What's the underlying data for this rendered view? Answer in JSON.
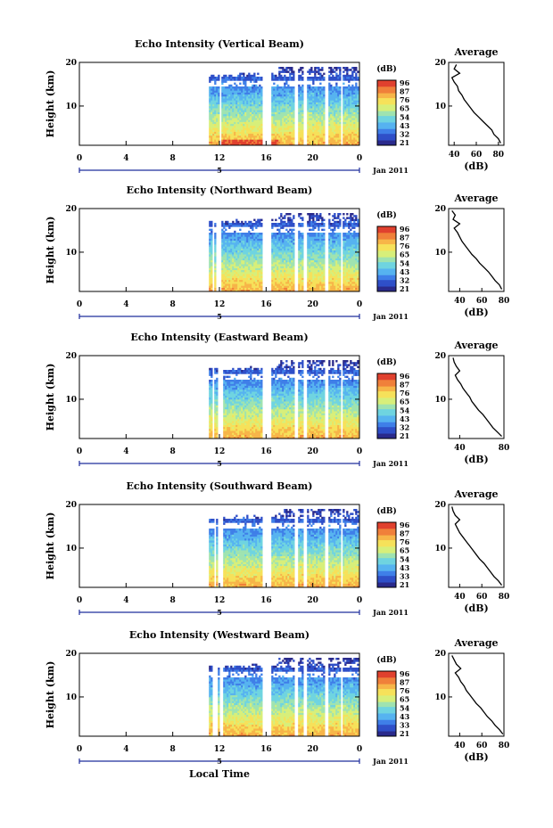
{
  "x_axis_label": "Local Time",
  "date_label": "Jan 2011",
  "day_marker": "5",
  "colorbar_unit": "(dB)",
  "average_title": "Average",
  "average_xlabel": "(dB)",
  "height_label": "Height (km)",
  "colors": {
    "colormap": [
      "#2a2a8c",
      "#2f4fc8",
      "#3f7fe8",
      "#56b3f0",
      "#6fd4e0",
      "#9fe3b0",
      "#d7ef7a",
      "#f6e15a",
      "#f7b548",
      "#f0803a",
      "#e0412e"
    ],
    "line": "#000000",
    "axis_blue": "#1f2d9c"
  },
  "chart_data": [
    {
      "type": "heatmap",
      "title": "Echo Intensity (Vertical Beam)",
      "xlabel": "",
      "ylabel": "Height (km)",
      "xlim": [
        0,
        24
      ],
      "ylim": [
        1,
        20
      ],
      "x_ticks": [
        "0",
        "4",
        "8",
        "12",
        "16",
        "20",
        "0"
      ],
      "y_ticks": [
        "20",
        "10"
      ],
      "colorbar_ticks": [
        "96",
        "87",
        "76",
        "65",
        "54",
        "43",
        "32",
        "21"
      ],
      "average": {
        "title": "Average",
        "xlabel": "(dB)",
        "xlim": [
          35,
          85
        ],
        "x_ticks": [
          "40",
          "60",
          "80"
        ],
        "y_ticks": [
          "20",
          "10"
        ],
        "height_km": [
          1.5,
          2.5,
          3.5,
          4.5,
          5.5,
          6.5,
          7.5,
          8.5,
          9.5,
          10.5,
          11.5,
          12.5,
          13.5,
          14.5,
          15.5,
          16.5,
          17.5,
          18.5,
          19.5
        ],
        "values_db": [
          82,
          80,
          76,
          74,
          70,
          66,
          62,
          58,
          55,
          52,
          49,
          47,
          44,
          43,
          40,
          38,
          45,
          40,
          42
        ]
      }
    },
    {
      "type": "heatmap",
      "title": "Echo Intensity (Northward Beam)",
      "xlabel": "",
      "ylabel": "Height (km)",
      "xlim": [
        0,
        24
      ],
      "ylim": [
        1,
        20
      ],
      "x_ticks": [
        "0",
        "4",
        "8",
        "12",
        "16",
        "20",
        "0"
      ],
      "y_ticks": [
        "20",
        "10"
      ],
      "colorbar_ticks": [
        "96",
        "87",
        "76",
        "65",
        "54",
        "43",
        "32",
        "21"
      ],
      "average": {
        "title": "Average",
        "xlabel": "(dB)",
        "xlim": [
          30,
          80
        ],
        "x_ticks": [
          "40",
          "60",
          "80"
        ],
        "y_ticks": [
          "20",
          "10"
        ],
        "height_km": [
          1.5,
          2.5,
          3.5,
          4.5,
          5.5,
          6.5,
          7.5,
          8.5,
          9.5,
          10.5,
          11.5,
          12.5,
          13.5,
          14.5,
          15.5,
          16.5,
          17.5,
          18.5,
          19.5
        ],
        "values_db": [
          78,
          76,
          72,
          69,
          66,
          62,
          58,
          55,
          51,
          48,
          45,
          42,
          40,
          38,
          35,
          40,
          34,
          36,
          33
        ]
      }
    },
    {
      "type": "heatmap",
      "title": "Echo Intensity (Eastward Beam)",
      "xlabel": "",
      "ylabel": "Height (km)",
      "xlim": [
        0,
        24
      ],
      "ylim": [
        1,
        20
      ],
      "x_ticks": [
        "0",
        "4",
        "8",
        "12",
        "16",
        "20",
        "0"
      ],
      "y_ticks": [
        "20",
        "10"
      ],
      "colorbar_ticks": [
        "96",
        "87",
        "76",
        "65",
        "54",
        "43",
        "32",
        "21"
      ],
      "average": {
        "title": "Average",
        "xlabel": "(dB)",
        "xlim": [
          30,
          80
        ],
        "x_ticks": [
          "40",
          "80"
        ],
        "y_ticks": [
          "20",
          "10"
        ],
        "height_km": [
          1.5,
          2.5,
          3.5,
          4.5,
          5.5,
          6.5,
          7.5,
          8.5,
          9.5,
          10.5,
          11.5,
          12.5,
          13.5,
          14.5,
          15.5,
          16.5,
          17.5,
          18.5,
          19.5
        ],
        "values_db": [
          78,
          74,
          70,
          67,
          64,
          61,
          57,
          54,
          51,
          49,
          46,
          43,
          41,
          38,
          36,
          40,
          37,
          35,
          34
        ]
      }
    },
    {
      "type": "heatmap",
      "title": "Echo Intensity (Southward Beam)",
      "xlabel": "",
      "ylabel": "Height (km)",
      "xlim": [
        0,
        24
      ],
      "ylim": [
        1,
        20
      ],
      "x_ticks": [
        "0",
        "4",
        "8",
        "12",
        "16",
        "20",
        "0"
      ],
      "y_ticks": [
        "20",
        "10"
      ],
      "colorbar_ticks": [
        "96",
        "87",
        "76",
        "65",
        "54",
        "43",
        "33",
        "21"
      ],
      "average": {
        "title": "Average",
        "xlabel": "(dB)",
        "xlim": [
          30,
          80
        ],
        "x_ticks": [
          "40",
          "60",
          "80"
        ],
        "y_ticks": [
          "20",
          "10"
        ],
        "height_km": [
          1.5,
          2.5,
          3.5,
          4.5,
          5.5,
          6.5,
          7.5,
          8.5,
          9.5,
          10.5,
          11.5,
          12.5,
          13.5,
          14.5,
          15.5,
          16.5,
          17.5,
          18.5,
          19.5
        ],
        "values_db": [
          78,
          75,
          71,
          68,
          65,
          62,
          58,
          55,
          52,
          49,
          46,
          43,
          40,
          38,
          36,
          40,
          36,
          34,
          33
        ]
      }
    },
    {
      "type": "heatmap",
      "title": "Echo Intensity (Westward Beam)",
      "xlabel": "Local Time",
      "ylabel": "Height (km)",
      "xlim": [
        0,
        24
      ],
      "ylim": [
        1,
        20
      ],
      "x_ticks": [
        "0",
        "4",
        "8",
        "12",
        "16",
        "20",
        "0"
      ],
      "y_ticks": [
        "20",
        "10"
      ],
      "colorbar_ticks": [
        "96",
        "87",
        "76",
        "65",
        "54",
        "43",
        "33",
        "21"
      ],
      "average": {
        "title": "Average",
        "xlabel": "(dB)",
        "xlim": [
          30,
          80
        ],
        "x_ticks": [
          "40",
          "60",
          "80"
        ],
        "y_ticks": [
          "20",
          "10"
        ],
        "height_km": [
          1.5,
          2.5,
          3.5,
          4.5,
          5.5,
          6.5,
          7.5,
          8.5,
          9.5,
          10.5,
          11.5,
          12.5,
          13.5,
          14.5,
          15.5,
          16.5,
          17.5,
          18.5,
          19.5
        ],
        "values_db": [
          79,
          76,
          72,
          69,
          65,
          62,
          59,
          55,
          52,
          49,
          46,
          44,
          41,
          39,
          36,
          41,
          37,
          35,
          33
        ]
      }
    }
  ]
}
